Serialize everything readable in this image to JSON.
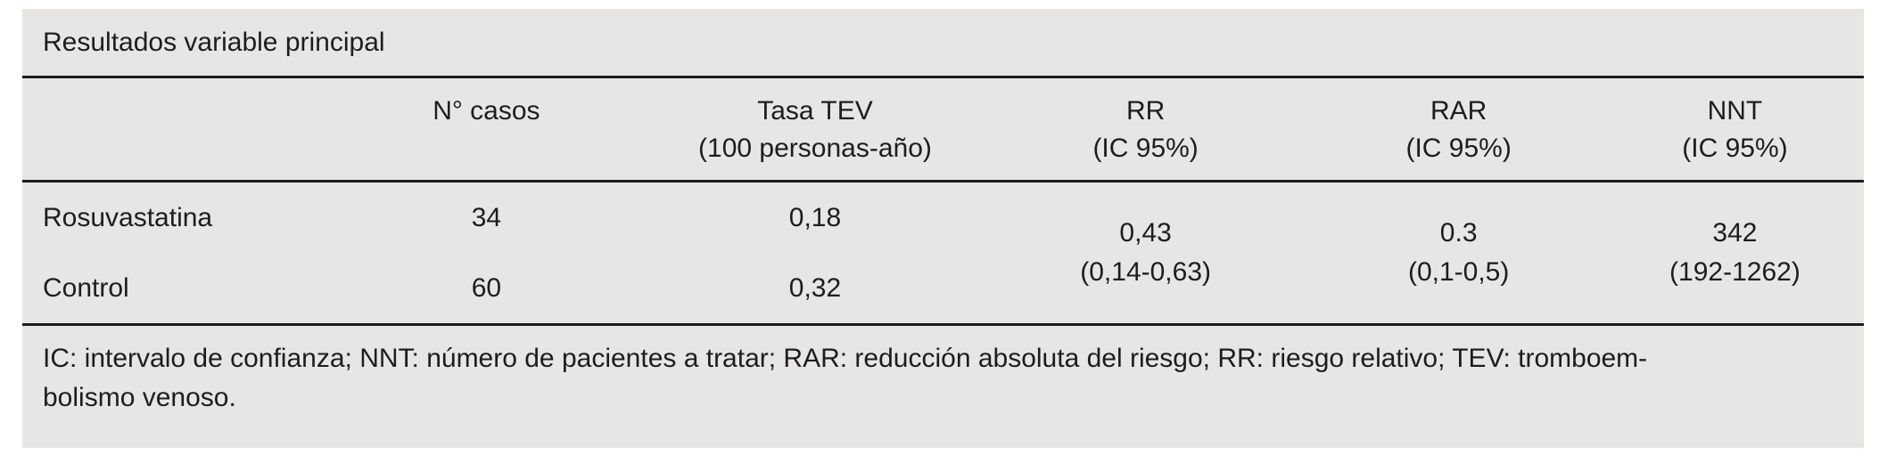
{
  "title": "Resultados variable principal",
  "columns": [
    {
      "line1": "",
      "line2": ""
    },
    {
      "line1": "N° casos",
      "line2": ""
    },
    {
      "line1": "Tasa TEV",
      "line2": "(100 personas-año)"
    },
    {
      "line1": "RR",
      "line2": "(IC 95%)"
    },
    {
      "line1": "RAR",
      "line2": "(IC 95%)"
    },
    {
      "line1": "NNT",
      "line2": "(IC 95%)"
    }
  ],
  "rows": [
    {
      "group": "Rosuvastatina",
      "n_casos": "34",
      "tasa_tev": "0,18"
    },
    {
      "group": "Control",
      "n_casos": "60",
      "tasa_tev": "0,32"
    }
  ],
  "summary": {
    "rr": {
      "value": "0,43",
      "ci": "(0,14-0,63)"
    },
    "rar": {
      "value": "0.3",
      "ci": "(0,1-0,5)"
    },
    "nnt": {
      "value": "342",
      "ci": "(192-1262)"
    }
  },
  "footnote": {
    "line1": "IC: intervalo de confianza; NNT: número de pacientes a tratar; RAR: reducción absoluta del riesgo; RR: riesgo relativo; TEV: tromboem-",
    "line2": "bolismo venoso."
  },
  "colors": {
    "panel_bg": "#e7e6e4",
    "text": "#1d1d1b",
    "rule": "#1c1c1c"
  }
}
